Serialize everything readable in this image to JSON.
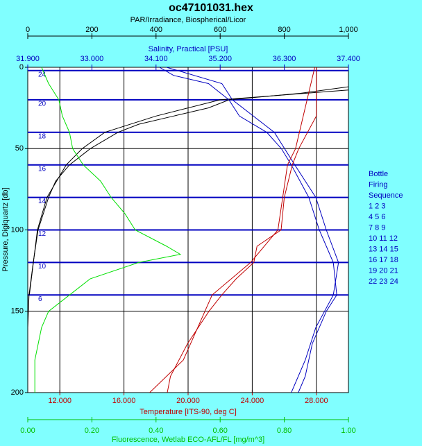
{
  "chart_data": {
    "type": "line",
    "title": "oc47101031.hex",
    "ylabel": "Pressure, Digiquartz [db]",
    "ylim": [
      0,
      200
    ],
    "yticks": [
      0,
      50,
      100,
      150,
      200
    ],
    "y_inverted": true,
    "grid": true,
    "x_axes": [
      {
        "label": "PAR/Irradiance, Biospherical/Licor",
        "lim": [
          0,
          1000
        ],
        "color": "#000000",
        "ticks": [
          0,
          200,
          400,
          600,
          800,
          {
            "value": 1000,
            "label": "1,000"
          }
        ]
      },
      {
        "label": "Salinity, Practical [PSU]",
        "lim": [
          31.9,
          37.4
        ],
        "color": "#0000c0",
        "ticks": [
          {
            "value": 31.9,
            "label": "31.900"
          },
          {
            "value": 33.0,
            "label": "33.000"
          },
          {
            "value": 34.1,
            "label": "34.100"
          },
          {
            "value": 35.2,
            "label": "35.200"
          },
          {
            "value": 36.3,
            "label": "36.300"
          },
          {
            "value": 37.4,
            "label": "37.400"
          }
        ]
      },
      {
        "label": "Temperature [ITS-90, deg C]",
        "lim": [
          10,
          30
        ],
        "color": "#c00000",
        "ticks": [
          {
            "value": 12,
            "label": "12.000"
          },
          {
            "value": 16,
            "label": "16.000"
          },
          {
            "value": 20,
            "label": "20.000"
          },
          {
            "value": 24,
            "label": "24.000"
          },
          {
            "value": 28,
            "label": "28.000"
          }
        ]
      },
      {
        "label": "Fluorescence, Wetlab ECO-AFL/FL [mg/m^3]",
        "lim": [
          0,
          1
        ],
        "color": "#00c000",
        "ticks": [
          {
            "value": 0,
            "label": "0.00"
          },
          {
            "value": 0.2,
            "label": "0.20"
          },
          {
            "value": 0.4,
            "label": "0.40"
          },
          {
            "value": 0.6,
            "label": "0.60"
          },
          {
            "value": 0.8,
            "label": "0.80"
          },
          {
            "value": 1,
            "label": "1.00"
          }
        ]
      }
    ],
    "series": [
      {
        "axis": 0,
        "color": "#000000",
        "pressure": [
          12,
          16,
          20,
          25,
          30,
          35,
          40,
          50,
          60,
          70,
          80,
          100,
          120,
          140,
          160
        ],
        "values": [
          1000,
          850,
          628,
          563,
          455,
          346,
          281,
          195,
          130,
          87,
          65,
          32,
          17,
          4,
          0
        ]
      },
      {
        "axis": 0,
        "color": "#000000",
        "pressure": [
          14,
          20,
          30,
          40,
          50,
          60,
          80,
          100,
          140
        ],
        "values": [
          1000,
          600,
          400,
          240,
          170,
          120,
          60,
          30,
          5
        ]
      },
      {
        "axis": 1,
        "color": "#0000c0",
        "pressure": [
          0,
          5,
          10,
          20,
          30,
          40,
          50,
          60,
          80,
          100,
          120,
          140,
          150,
          170,
          190,
          200
        ],
        "values": [
          34.16,
          34.4,
          35.0,
          35.35,
          35.53,
          36.0,
          36.25,
          36.42,
          36.72,
          36.9,
          37.14,
          37.2,
          37.02,
          36.78,
          36.66,
          36.54
        ]
      },
      {
        "axis": 1,
        "color": "#0000c0",
        "pressure": [
          0,
          10,
          20,
          40,
          60,
          80,
          100,
          120,
          140,
          160,
          180,
          200
        ],
        "values": [
          34.28,
          35.23,
          35.41,
          36.13,
          36.48,
          36.84,
          37.02,
          37.23,
          37.14,
          36.84,
          36.66,
          36.42
        ]
      },
      {
        "axis": 2,
        "color": "#c00000",
        "pressure": [
          0,
          30,
          50,
          60,
          80,
          100,
          110,
          120,
          130,
          140,
          150,
          170,
          190,
          200
        ],
        "values": [
          28.0,
          28.0,
          26.9,
          26.5,
          26.0,
          25.8,
          24.3,
          24.1,
          23.0,
          22.1,
          21.3,
          19.96,
          18.9,
          18.7
        ]
      },
      {
        "axis": 2,
        "color": "#c00000",
        "pressure": [
          0,
          50,
          60,
          100,
          120,
          140,
          160,
          180,
          200
        ],
        "values": [
          27.9,
          26.7,
          26.2,
          25.6,
          23.9,
          21.5,
          20.6,
          19.7,
          17.6
        ]
      },
      {
        "axis": 3,
        "color": "#00e000",
        "pressure": [
          0,
          10,
          20,
          30,
          40,
          50,
          60,
          70,
          80,
          90,
          100,
          110,
          115,
          120,
          130,
          140,
          150,
          160,
          180,
          200
        ],
        "values": [
          0.043,
          0.065,
          0.097,
          0.108,
          0.13,
          0.14,
          0.173,
          0.227,
          0.26,
          0.303,
          0.335,
          0.433,
          0.476,
          0.346,
          0.195,
          0.13,
          0.065,
          0.043,
          0.022,
          0.022
        ]
      }
    ],
    "bottles": {
      "color": "#0000c0",
      "pressure": [
        2,
        20,
        40,
        60,
        80,
        100,
        120,
        140
      ],
      "labels": [
        "24",
        "20",
        "18",
        "16",
        "14",
        "12",
        "10",
        "6"
      ]
    },
    "legend": [
      "Bottle",
      "Firing",
      "Sequence",
      "1  2  3",
      "4  5  6",
      "7  8  9",
      "10 11 12",
      "13 14 15",
      "16 17 18",
      "19 20 21",
      "22 23 24"
    ]
  }
}
